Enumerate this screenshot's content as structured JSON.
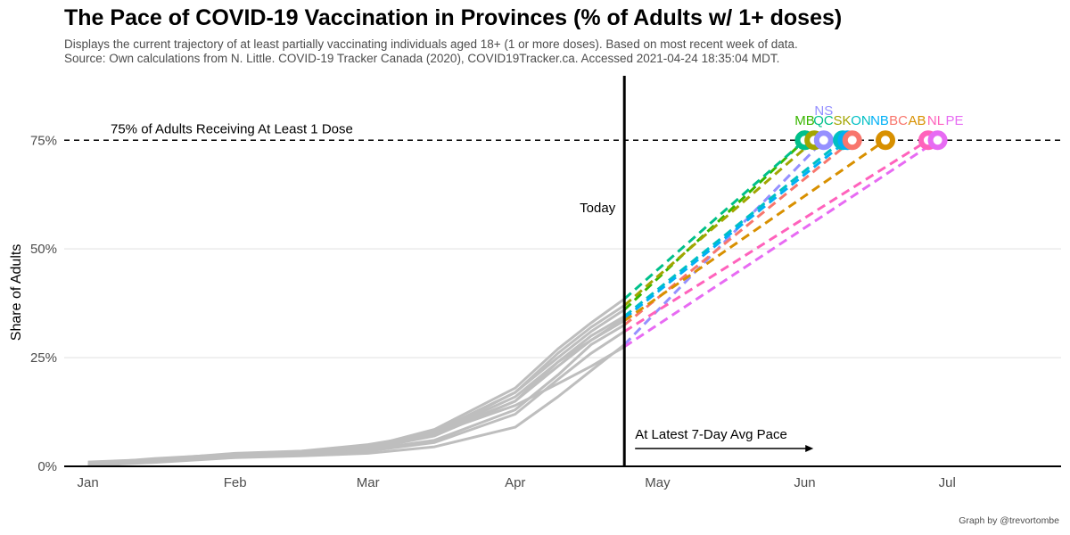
{
  "title": "The Pace of COVID-19 Vaccination in Provinces (% of Adults w/ 1+ doses)",
  "subtitle_line1": "Displays the current trajectory of at least partially vaccinating individuals aged 18+ (1 or more doses). Based on most recent week of data.",
  "subtitle_line2": "Source: Own calculations from N. Little. COVID-19 Tracker Canada (2020), COVID19Tracker.ca. Accessed 2021-04-24 18:35:04 MDT.",
  "caption": "Graph by @trevortombe",
  "chart_data": {
    "type": "line",
    "title": "The Pace of COVID-19 Vaccination in Provinces (% of Adults w/ 1+ doses)",
    "xlabel": "",
    "ylabel": "Share of Adults",
    "xlim": [
      "2020-12-27",
      "2021-07-25"
    ],
    "ylim": [
      0,
      0.8
    ],
    "x_ticks": [
      {
        "date": "2021-01-01",
        "label": "Jan"
      },
      {
        "date": "2021-02-01",
        "label": "Feb"
      },
      {
        "date": "2021-03-01",
        "label": "Mar"
      },
      {
        "date": "2021-04-01",
        "label": "Apr"
      },
      {
        "date": "2021-05-01",
        "label": "May"
      },
      {
        "date": "2021-06-01",
        "label": "Jun"
      },
      {
        "date": "2021-07-01",
        "label": "Jul"
      }
    ],
    "y_ticks": [
      {
        "value": 0,
        "label": "0%"
      },
      {
        "value": 0.25,
        "label": "25%"
      },
      {
        "value": 0.5,
        "label": "50%"
      },
      {
        "value": 0.75,
        "label": "75%"
      }
    ],
    "today": {
      "date": "2021-04-24",
      "label": "Today"
    },
    "target": {
      "value": 0.75,
      "label": "75% of Adults Receiving At Least 1 Dose"
    },
    "pace_annotation": "At Latest 7-Day Avg Pace",
    "provinces": [
      {
        "code": "MB",
        "color": "#39B600",
        "current": 0.36,
        "target_date": "2021-06-01"
      },
      {
        "code": "QC",
        "color": "#00C08B",
        "current": 0.385,
        "target_date": "2021-06-01"
      },
      {
        "code": "SK",
        "color": "#A3A500",
        "current": 0.37,
        "target_date": "2021-06-03"
      },
      {
        "code": "NS",
        "color": "#9590FF",
        "current": 0.28,
        "target_date": "2021-06-05"
      },
      {
        "code": "ON",
        "color": "#00BFC4",
        "current": 0.345,
        "target_date": "2021-06-09"
      },
      {
        "code": "NB",
        "color": "#00B0F6",
        "current": 0.34,
        "target_date": "2021-06-10"
      },
      {
        "code": "BC",
        "color": "#F8766D",
        "current": 0.325,
        "target_date": "2021-06-11"
      },
      {
        "code": "AB",
        "color": "#D89000",
        "current": 0.335,
        "target_date": "2021-06-18"
      },
      {
        "code": "NL",
        "color": "#FF62BC",
        "current": 0.31,
        "target_date": "2021-06-27"
      },
      {
        "code": "PE",
        "color": "#E76BF3",
        "current": 0.275,
        "target_date": "2021-06-29"
      }
    ],
    "history_color": "#BEBEBE",
    "history": {
      "dates": [
        "2021-01-01",
        "2021-01-15",
        "2021-02-01",
        "2021-02-15",
        "2021-03-01",
        "2021-03-15",
        "2021-04-01",
        "2021-04-10",
        "2021-04-17",
        "2021-04-24"
      ],
      "series": [
        {
          "name": "QC",
          "values": [
            0.006,
            0.018,
            0.028,
            0.031,
            0.045,
            0.085,
            0.18,
            0.27,
            0.33,
            0.385
          ]
        },
        {
          "name": "MB",
          "values": [
            0.004,
            0.014,
            0.026,
            0.03,
            0.042,
            0.075,
            0.17,
            0.25,
            0.31,
            0.36
          ]
        },
        {
          "name": "SK",
          "values": [
            0.005,
            0.016,
            0.027,
            0.031,
            0.044,
            0.08,
            0.17,
            0.26,
            0.32,
            0.37
          ]
        },
        {
          "name": "ON",
          "values": [
            0.003,
            0.012,
            0.024,
            0.028,
            0.04,
            0.07,
            0.15,
            0.24,
            0.3,
            0.345
          ]
        },
        {
          "name": "NB",
          "values": [
            0.004,
            0.015,
            0.027,
            0.03,
            0.045,
            0.075,
            0.15,
            0.23,
            0.29,
            0.34
          ]
        },
        {
          "name": "BC",
          "values": [
            0.004,
            0.013,
            0.025,
            0.029,
            0.038,
            0.06,
            0.13,
            0.21,
            0.28,
            0.325
          ]
        },
        {
          "name": "AB",
          "values": [
            0.003,
            0.012,
            0.026,
            0.03,
            0.045,
            0.075,
            0.16,
            0.24,
            0.29,
            0.335
          ]
        },
        {
          "name": "NL",
          "values": [
            0.002,
            0.01,
            0.022,
            0.026,
            0.035,
            0.055,
            0.12,
            0.2,
            0.26,
            0.31
          ]
        },
        {
          "name": "NS",
          "values": [
            0.002,
            0.009,
            0.02,
            0.024,
            0.03,
            0.045,
            0.09,
            0.16,
            0.22,
            0.28
          ]
        },
        {
          "name": "PE",
          "values": [
            0.01,
            0.016,
            0.03,
            0.035,
            0.05,
            0.075,
            0.14,
            0.19,
            0.23,
            0.275
          ]
        }
      ]
    }
  }
}
